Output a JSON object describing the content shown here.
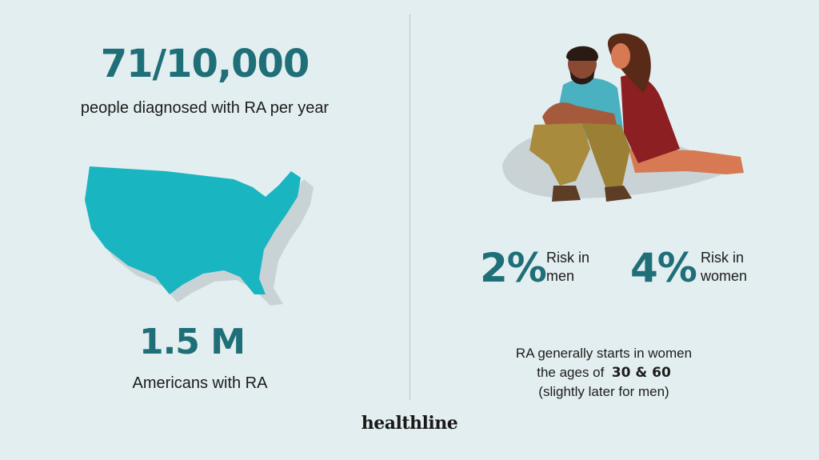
{
  "stats": {
    "diagnosed_value": "71/10,000",
    "diagnosed_label": "people diagnosed with RA per year",
    "americans_value": "1.5 M",
    "americans_label": "Americans with RA"
  },
  "risk": {
    "men_pct": "2%",
    "men_label_line1": "Risk in",
    "men_label_line2": "men",
    "women_pct": "4%",
    "women_label_line1": "Risk in",
    "women_label_line2": "women"
  },
  "note": {
    "line1": "RA generally starts in women",
    "line2_prefix": "the ages of",
    "line2_ages": "30 & 60",
    "line3": "(slightly later for men)"
  },
  "brand": "healthline",
  "colors": {
    "background": "#e3eef0",
    "accent_teal": "#1f6f78",
    "map_fill": "#19b5c0",
    "shadow": "#c9d3d6"
  },
  "illustrations": {
    "map": "usa-map-illustration",
    "couple": "sitting-couple-illustration"
  }
}
